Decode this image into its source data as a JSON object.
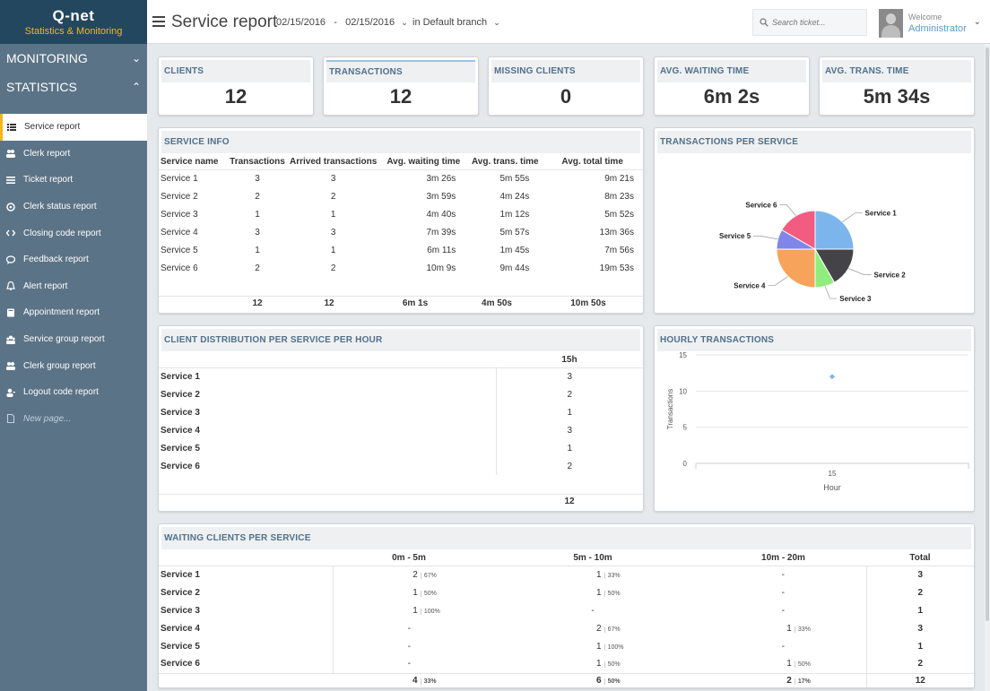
{
  "sidebar": {
    "logo_name": "Q-net",
    "logo_tag": "Statistics & Monitoring",
    "sections": [
      {
        "label": "MONITORING"
      },
      {
        "label": "STATISTICS"
      }
    ],
    "items": [
      {
        "label": "Service report",
        "icon": "list-icon"
      },
      {
        "label": "Clerk report",
        "icon": "users-icon"
      },
      {
        "label": "Ticket report",
        "icon": "lines-icon"
      },
      {
        "label": "Clerk status report",
        "icon": "status-icon"
      },
      {
        "label": "Closing code report",
        "icon": "code-icon"
      },
      {
        "label": "Feedback report",
        "icon": "chat-icon"
      },
      {
        "label": "Alert report",
        "icon": "bell-icon"
      },
      {
        "label": "Appointment report",
        "icon": "book-icon"
      },
      {
        "label": "Service group report",
        "icon": "group-icon"
      },
      {
        "label": "Clerk group report",
        "icon": "users-icon"
      },
      {
        "label": "Logout code report",
        "icon": "user-icon"
      },
      {
        "label": "New page...",
        "icon": "page-icon"
      }
    ]
  },
  "header": {
    "title": "Service report",
    "date_from": "02/15/2016",
    "date_sep": "-",
    "date_to": "02/15/2016",
    "branch": "in Default branch",
    "search_placeholder": "Search ticket...",
    "welcome": "Welcome",
    "user": "Administrator"
  },
  "kpis": [
    {
      "label": "CLIENTS",
      "value": "12"
    },
    {
      "label": "TRANSACTIONS",
      "value": "12"
    },
    {
      "label": "MISSING CLIENTS",
      "value": "0"
    },
    {
      "label": "AVG. WAITING TIME",
      "value": "6m 2s"
    },
    {
      "label": "AVG. TRANS. TIME",
      "value": "5m 34s"
    }
  ],
  "service_info": {
    "title": "SERVICE INFO",
    "headers": [
      "Service name",
      "Transactions",
      "Arrived transactions",
      "Avg. waiting time",
      "Avg. trans. time",
      "Avg. total time"
    ],
    "rows": [
      [
        "Service 1",
        "3",
        "3",
        "3m 26s",
        "5m 55s",
        "9m 21s"
      ],
      [
        "Service 2",
        "2",
        "2",
        "3m 59s",
        "4m 24s",
        "8m 23s"
      ],
      [
        "Service 3",
        "1",
        "1",
        "4m 40s",
        "1m 12s",
        "5m 52s"
      ],
      [
        "Service 4",
        "3",
        "3",
        "7m 39s",
        "5m 57s",
        "13m 36s"
      ],
      [
        "Service 5",
        "1",
        "1",
        "6m 11s",
        "1m 45s",
        "7m 56s"
      ],
      [
        "Service 6",
        "2",
        "2",
        "10m 9s",
        "9m 44s",
        "19m 53s"
      ]
    ],
    "totals": [
      "",
      "12",
      "12",
      "6m 1s",
      "4m 50s",
      "10m 50s"
    ]
  },
  "pie": {
    "title": "TRANSACTIONS PER SERVICE",
    "chart_data": {
      "type": "pie",
      "slices": [
        {
          "label": "Service 1",
          "value": 3,
          "color": "#7cb5ec"
        },
        {
          "label": "Service 2",
          "value": 2,
          "color": "#434348"
        },
        {
          "label": "Service 3",
          "value": 1,
          "color": "#90ed7d"
        },
        {
          "label": "Service 4",
          "value": 3,
          "color": "#f7a35c"
        },
        {
          "label": "Service 5",
          "value": 1,
          "color": "#8085e9"
        },
        {
          "label": "Service 6",
          "value": 2,
          "color": "#f15c80"
        }
      ]
    }
  },
  "distribution": {
    "title": "CLIENT DISTRIBUTION PER SERVICE PER HOUR",
    "hour_header": "15h",
    "rows": [
      {
        "name": "Service 1",
        "value": "3"
      },
      {
        "name": "Service 2",
        "value": "2"
      },
      {
        "name": "Service 3",
        "value": "1"
      },
      {
        "name": "Service 4",
        "value": "3"
      },
      {
        "name": "Service 5",
        "value": "1"
      },
      {
        "name": "Service 6",
        "value": "2"
      }
    ],
    "total": "12"
  },
  "hourly": {
    "title": "HOURLY TRANSACTIONS",
    "chart_data": {
      "type": "scatter",
      "xlabel": "Hour",
      "ylabel": "Transactions",
      "x": [
        15
      ],
      "y": [
        12
      ],
      "yticks": [
        0,
        5,
        10,
        15
      ],
      "ylim": [
        0,
        15
      ],
      "xticks": [
        15
      ],
      "color": "#7cb5ec"
    }
  },
  "waiting": {
    "title": "WAITING CLIENTS PER SERVICE",
    "headers": [
      "",
      "0m - 5m",
      "5m - 10m",
      "10m - 20m",
      "Total"
    ],
    "rows": [
      {
        "name": "Service 1",
        "cells": [
          [
            "2",
            "67%"
          ],
          [
            "1",
            "33%"
          ],
          [
            "-",
            ""
          ]
        ],
        "total": "3"
      },
      {
        "name": "Service 2",
        "cells": [
          [
            "1",
            "50%"
          ],
          [
            "1",
            "50%"
          ],
          [
            "-",
            ""
          ]
        ],
        "total": "2"
      },
      {
        "name": "Service 3",
        "cells": [
          [
            "1",
            "100%"
          ],
          [
            "-",
            ""
          ],
          [
            "-",
            ""
          ]
        ],
        "total": "1"
      },
      {
        "name": "Service 4",
        "cells": [
          [
            "-",
            ""
          ],
          [
            "2",
            "67%"
          ],
          [
            "1",
            "33%"
          ]
        ],
        "total": "3"
      },
      {
        "name": "Service 5",
        "cells": [
          [
            "-",
            ""
          ],
          [
            "1",
            "100%"
          ],
          [
            "-",
            ""
          ]
        ],
        "total": "1"
      },
      {
        "name": "Service 6",
        "cells": [
          [
            "-",
            ""
          ],
          [
            "1",
            "50%"
          ],
          [
            "1",
            "50%"
          ]
        ],
        "total": "2"
      }
    ],
    "totals": [
      [
        "4",
        "33%"
      ],
      [
        "6",
        "50%"
      ],
      [
        "2",
        "17%"
      ]
    ],
    "grand_total": "12"
  }
}
